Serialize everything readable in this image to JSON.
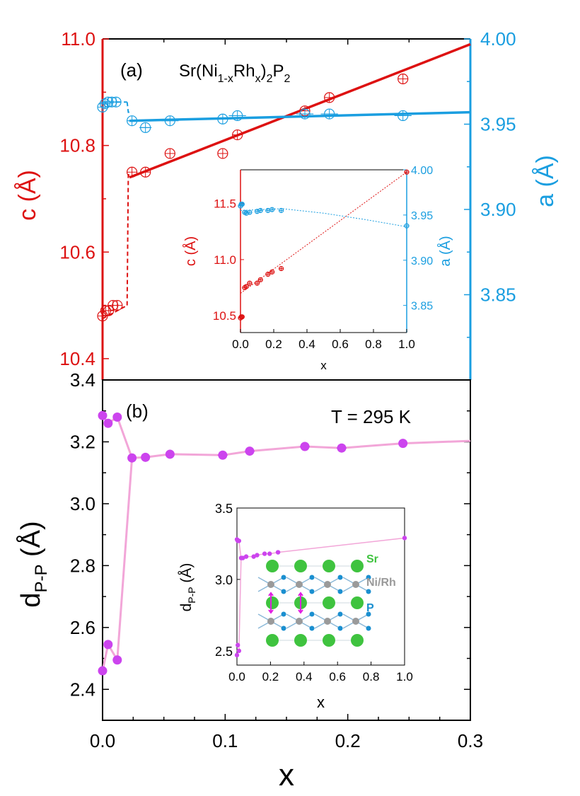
{
  "colors": {
    "c": "#dd1111",
    "a": "#1a9ee0",
    "d": "#cc44ee",
    "dline": "#f2a6d8",
    "sr": "#3fc33f",
    "ni": "#9a9a9a",
    "p": "#1a8fd0",
    "arrow": "#e020e0",
    "axis": "#000000"
  },
  "chart_data": [
    {
      "id": "panel-a",
      "type": "scatter",
      "label": "(a)",
      "formula": {
        "base1": "Sr(Ni",
        "sub1": "1-x",
        "mid": "Rh",
        "sub2": "x",
        "close": ")",
        "sub3": "2",
        "p": "P",
        "sub4": "2"
      },
      "xlim": [
        0,
        0.3
      ],
      "left_axis": {
        "label": "c (Å)",
        "ylim": [
          10.36,
          11.0
        ],
        "ticks": [
          "10.4",
          "10.6",
          "10.8",
          "11.0"
        ]
      },
      "right_axis": {
        "label": "a (Å)",
        "ylim": [
          3.8,
          4.0
        ],
        "ticks": [
          "3.85",
          "3.90",
          "3.95",
          "4.00"
        ]
      },
      "series": [
        {
          "name": "c",
          "axis": "left",
          "x": [
            0.0,
            0.0025,
            0.005,
            0.0085,
            0.012,
            0.024,
            0.035,
            0.055,
            0.098,
            0.11,
            0.165,
            0.185,
            0.245
          ],
          "y": [
            10.48,
            10.49,
            10.49,
            10.5,
            10.5,
            10.75,
            10.75,
            10.785,
            10.785,
            10.82,
            10.865,
            10.89,
            10.925
          ]
        },
        {
          "name": "a",
          "axis": "right",
          "x": [
            0.0,
            0.002,
            0.0045,
            0.0075,
            0.011,
            0.024,
            0.035,
            0.055,
            0.098,
            0.11,
            0.165,
            0.185,
            0.245
          ],
          "y": [
            3.96,
            3.962,
            3.963,
            3.963,
            3.963,
            3.952,
            3.948,
            3.952,
            3.953,
            3.955,
            3.956,
            3.956,
            3.955
          ],
          "xerr": [
            0.001,
            0.003,
            0.003,
            0.003,
            0.003,
            0.003,
            0.005,
            0.007,
            0.007,
            0.007,
            0.007,
            0.007,
            0.007
          ]
        }
      ],
      "fits": {
        "c_low": [
          [
            0.0,
            10.475
          ],
          [
            0.02,
            10.5
          ]
        ],
        "c_step": [
          [
            0.02,
            10.5
          ],
          [
            0.021,
            10.745
          ],
          [
            0.022,
            10.745
          ]
        ],
        "c_high": [
          [
            0.022,
            10.74
          ],
          [
            0.3,
            10.99
          ]
        ],
        "c_drop": [
          [
            0.0,
            10.475
          ],
          [
            0.0,
            10.7
          ]
        ],
        "a_low": [
          [
            0.0,
            3.963
          ],
          [
            0.02,
            3.963
          ]
        ],
        "a_step": [
          [
            0.02,
            3.963
          ],
          [
            0.021,
            3.957
          ],
          [
            0.022,
            3.957
          ]
        ],
        "a_high": [
          [
            0.022,
            3.952
          ],
          [
            0.3,
            3.957
          ]
        ]
      },
      "inset": {
        "xlabel": "x",
        "xlim": [
          0,
          1.0
        ],
        "xticks": [
          "0.0",
          "0.2",
          "0.4",
          "0.6",
          "0.8",
          "1.0"
        ],
        "left_axis": {
          "label": "c (Å)",
          "ylim": [
            10.35,
            11.8
          ],
          "ticks": [
            "10.5",
            "11.0",
            "11.5"
          ]
        },
        "right_axis": {
          "label": "a (Å)",
          "ylim": [
            3.82,
            4.0
          ],
          "ticks": [
            "3.85",
            "3.90",
            "3.95",
            "4.00"
          ]
        },
        "series": [
          {
            "name": "c",
            "x": [
              0.0,
              0.005,
              0.01,
              0.025,
              0.035,
              0.055,
              0.1,
              0.12,
              0.165,
              0.19,
              0.245,
              1.0
            ],
            "y": [
              10.48,
              10.49,
              10.49,
              10.75,
              10.76,
              10.79,
              10.79,
              10.82,
              10.87,
              10.89,
              10.92,
              11.78
            ]
          },
          {
            "name": "a",
            "x": [
              0.0,
              0.005,
              0.01,
              0.025,
              0.035,
              0.055,
              0.1,
              0.12,
              0.165,
              0.19,
              0.245,
              1.0
            ],
            "y": [
              3.96,
              3.962,
              3.962,
              3.953,
              3.952,
              3.953,
              3.954,
              3.955,
              3.955,
              3.956,
              3.955,
              3.938
            ]
          }
        ],
        "c_fit": [
          [
            0.0,
            10.7
          ],
          [
            1.0,
            11.78
          ]
        ],
        "a_fit": [
          [
            0.0,
            3.955
          ],
          [
            0.25,
            3.957
          ],
          [
            0.5,
            3.952
          ],
          [
            0.75,
            3.945
          ],
          [
            1.0,
            3.937
          ]
        ]
      }
    },
    {
      "id": "panel-b",
      "type": "line",
      "label": "(b)",
      "annotation": "T = 295 K",
      "xlabel": "x",
      "ylabel": {
        "d": "d",
        "sub": "P-P",
        "unit": " (Å)"
      },
      "xlim": [
        0,
        0.3
      ],
      "xticks": [
        "0.0",
        "0.1",
        "0.2",
        "0.3"
      ],
      "ylim": [
        2.3,
        3.4
      ],
      "yticks": [
        "2.4",
        "2.6",
        "2.8",
        "3.0",
        "3.2",
        "3.4"
      ],
      "series": [
        {
          "name": "d_P-P upper branch",
          "x": [
            0.0,
            0.0045,
            0.012,
            0.024,
            0.035,
            0.055,
            0.098,
            0.12,
            0.165,
            0.195,
            0.245,
            0.3
          ],
          "y": [
            3.285,
            3.26,
            3.28,
            3.148,
            3.15,
            3.16,
            3.157,
            3.17,
            3.185,
            3.18,
            3.195,
            3.203
          ]
        },
        {
          "name": "d_P-P lower branch",
          "x": [
            0.0,
            0.0045,
            0.012,
            0.024
          ],
          "y": [
            2.46,
            2.545,
            2.495,
            3.148
          ]
        }
      ],
      "xerr_points": [
        0.098,
        0.12,
        0.165,
        0.195
      ],
      "inset": {
        "xlabel": "x",
        "ylabel": {
          "d": "d",
          "sub": "P-P",
          "unit": " (Å)"
        },
        "xlim": [
          0,
          1.0
        ],
        "xticks": [
          "0.0",
          "0.2",
          "0.4",
          "0.6",
          "0.8",
          "1.0"
        ],
        "ylim": [
          2.4,
          3.5
        ],
        "yticks": [
          "2.5",
          "3.0",
          "3.5"
        ],
        "series": [
          {
            "name": "upper",
            "x": [
              0.0,
              0.005,
              0.012,
              0.025,
              0.035,
              0.055,
              0.1,
              0.12,
              0.165,
              0.195,
              0.245,
              1.0
            ],
            "y": [
              3.28,
              3.27,
              3.27,
              3.15,
              3.15,
              3.16,
              3.16,
              3.17,
              3.18,
              3.18,
              3.19,
              3.29
            ]
          },
          {
            "name": "lower",
            "x": [
              0.0,
              0.005,
              0.012
            ],
            "y": [
              2.47,
              2.54,
              2.5
            ]
          }
        ],
        "legend": {
          "sr": "Sr",
          "ni": "Ni/Rh",
          "p": "P"
        }
      }
    }
  ]
}
